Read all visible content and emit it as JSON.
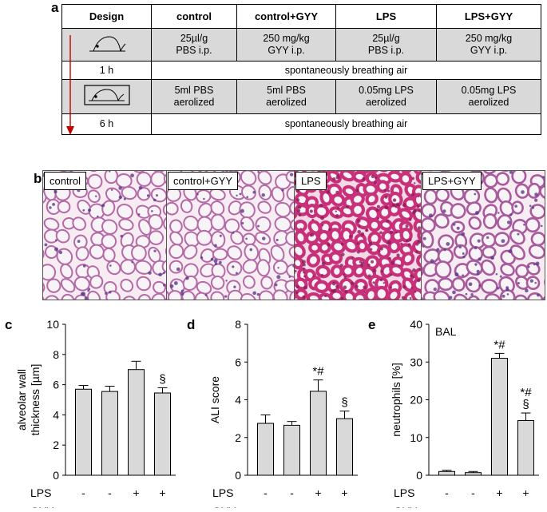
{
  "panel_a": {
    "letter": "a",
    "header": [
      "Design",
      "control",
      "control+GYY",
      "LPS",
      "LPS+GYY"
    ],
    "row1": [
      [
        "25µl/g",
        "PBS i.p."
      ],
      [
        "250 mg/kg",
        "GYY i.p."
      ],
      [
        "25µl/g",
        "PBS i.p."
      ],
      [
        "250 mg/kg",
        "GYY i.p."
      ]
    ],
    "row2_time": "1 h",
    "row2_text": "spontaneously breathing air",
    "row3": [
      [
        "5ml PBS",
        "aerolized"
      ],
      [
        "5ml PBS",
        "aerolized"
      ],
      [
        "0.05mg LPS",
        "aerolized"
      ],
      [
        "0.05mg LPS",
        "aerolized"
      ]
    ],
    "row4_time": "6 h",
    "row4_text": "spontaneously breathing air",
    "arrow_color": "#c00000"
  },
  "panel_b": {
    "letter": "b",
    "images": [
      {
        "label": "control"
      },
      {
        "label": "control+GYY"
      },
      {
        "label": "LPS"
      },
      {
        "label": "LPS+GYY"
      }
    ]
  },
  "chart_data": [
    {
      "type": "bar",
      "letter": "c",
      "ylabel_lines": [
        "alveolar wall",
        "thickness [µm]"
      ],
      "ylim": [
        0,
        10
      ],
      "yticks": [
        0,
        2,
        4,
        6,
        8,
        10
      ],
      "values": [
        5.7,
        5.55,
        7.0,
        5.45
      ],
      "errors": [
        0.25,
        0.35,
        0.55,
        0.35
      ],
      "annotations": [
        "",
        "",
        "",
        "§"
      ],
      "inset_label": "",
      "row_labels": [
        "LPS",
        "GYY"
      ],
      "lps": [
        "-",
        "-",
        "+",
        "+"
      ],
      "gyy": [
        "-",
        "+",
        "-",
        "+"
      ]
    },
    {
      "type": "bar",
      "letter": "d",
      "ylabel_lines": [
        "ALI score"
      ],
      "ylim": [
        0,
        8
      ],
      "yticks": [
        0,
        2,
        4,
        6,
        8
      ],
      "values": [
        2.75,
        2.65,
        4.45,
        3.0
      ],
      "errors": [
        0.45,
        0.2,
        0.6,
        0.4
      ],
      "annotations": [
        "",
        "",
        "*#",
        "§"
      ],
      "inset_label": "",
      "row_labels": [
        "LPS",
        "GYY"
      ],
      "lps": [
        "-",
        "-",
        "+",
        "+"
      ],
      "gyy": [
        "-",
        "+",
        "-",
        "+"
      ]
    },
    {
      "type": "bar",
      "letter": "e",
      "ylabel_lines": [
        "neutrophils [%]"
      ],
      "ylim": [
        0,
        40
      ],
      "yticks": [
        0,
        10,
        20,
        30,
        40
      ],
      "values": [
        1.0,
        0.7,
        31.0,
        14.5
      ],
      "errors": [
        0.3,
        0.3,
        1.3,
        2.0
      ],
      "annotations": [
        "",
        "",
        "*#",
        "*#\n§"
      ],
      "inset_label": "BAL",
      "row_labels": [
        "LPS",
        "GYY"
      ],
      "lps": [
        "-",
        "-",
        "+",
        "+"
      ],
      "gyy": [
        "-",
        "+",
        "-",
        "+"
      ]
    }
  ],
  "style": {
    "bar_fill": "#d9d9d9",
    "table_gray": "#d9d9d9"
  }
}
